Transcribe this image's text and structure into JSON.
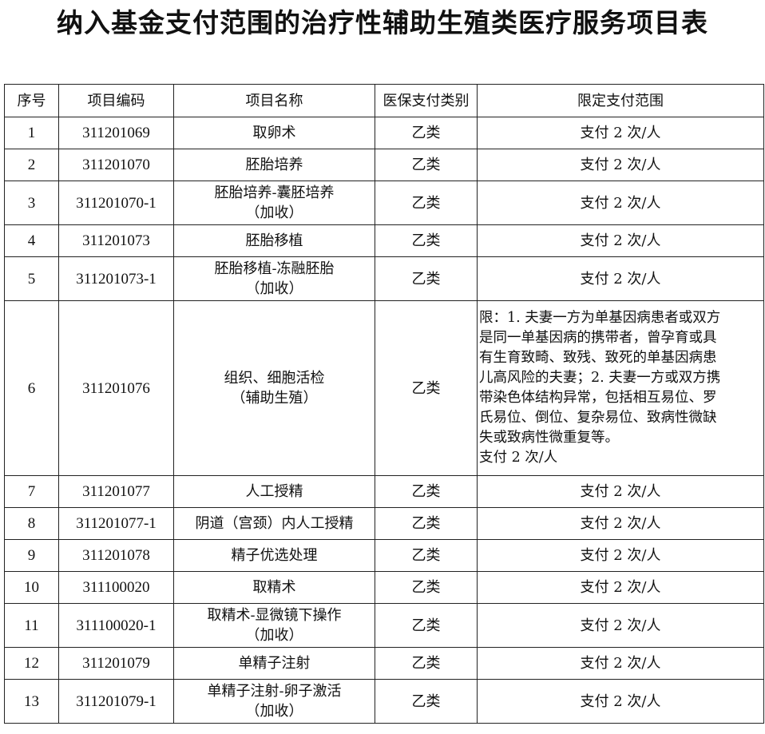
{
  "title": "纳入基金支付范围的治疗性辅助生殖类医疗服务项目表",
  "headers": [
    "序号",
    "项目编码",
    "项目名称",
    "医保支付类别",
    "限定支付范围"
  ],
  "rows": [
    {
      "no": "1",
      "code": "311201069",
      "name": [
        "取卵术"
      ],
      "cat": "乙类",
      "scope": "支付 2 次/人"
    },
    {
      "no": "2",
      "code": "311201070",
      "name": [
        "胚胎培养"
      ],
      "cat": "乙类",
      "scope": "支付 2 次/人"
    },
    {
      "no": "3",
      "code": "311201070-1",
      "name": [
        "胚胎培养-囊胚培养",
        "（加收）"
      ],
      "cat": "乙类",
      "scope": "支付 2 次/人"
    },
    {
      "no": "4",
      "code": "311201073",
      "name": [
        "胚胎移植"
      ],
      "cat": "乙类",
      "scope": "支付 2 次/人"
    },
    {
      "no": "5",
      "code": "311201073-1",
      "name": [
        "胚胎移植-冻融胚胎",
        "（加收）"
      ],
      "cat": "乙类",
      "scope": "支付 2 次/人"
    },
    {
      "no": "6",
      "code": "311201076",
      "name": [
        "组织、细胞活检",
        "（辅助生殖）"
      ],
      "cat": "乙类",
      "scope_lines": [
        "限：1. 夫妻一方为单基因病患者或双方",
        "是同一单基因病的携带者，曾孕育或具",
        "有生育致畸、致残、致死的单基因病患",
        "儿高风险的夫妻；2. 夫妻一方或双方携",
        "带染色体结构异常，包括相互易位、罗",
        "氏易位、倒位、复杂易位、致病性微缺",
        "失或致病性微重复等。",
        "支付 2 次/人"
      ]
    },
    {
      "no": "7",
      "code": "311201077",
      "name": [
        "人工授精"
      ],
      "cat": "乙类",
      "scope": "支付 2 次/人"
    },
    {
      "no": "8",
      "code": "311201077-1",
      "name": [
        "阴道（宫颈）内人工授精"
      ],
      "cat": "乙类",
      "scope": "支付 2 次/人"
    },
    {
      "no": "9",
      "code": "311201078",
      "name": [
        "精子优选处理"
      ],
      "cat": "乙类",
      "scope": "支付 2 次/人"
    },
    {
      "no": "10",
      "code": "311100020",
      "name": [
        "取精术"
      ],
      "cat": "乙类",
      "scope": "支付 2 次/人"
    },
    {
      "no": "11",
      "code": "311100020-1",
      "name": [
        "取精术-显微镜下操作",
        "（加收）"
      ],
      "cat": "乙类",
      "scope": "支付 2 次/人"
    },
    {
      "no": "12",
      "code": "311201079",
      "name": [
        "单精子注射"
      ],
      "cat": "乙类",
      "scope": "支付 2 次/人"
    },
    {
      "no": "13",
      "code": "311201079-1",
      "name": [
        "单精子注射-卵子激活",
        "（加收）"
      ],
      "cat": "乙类",
      "scope": "支付 2 次/人"
    }
  ]
}
